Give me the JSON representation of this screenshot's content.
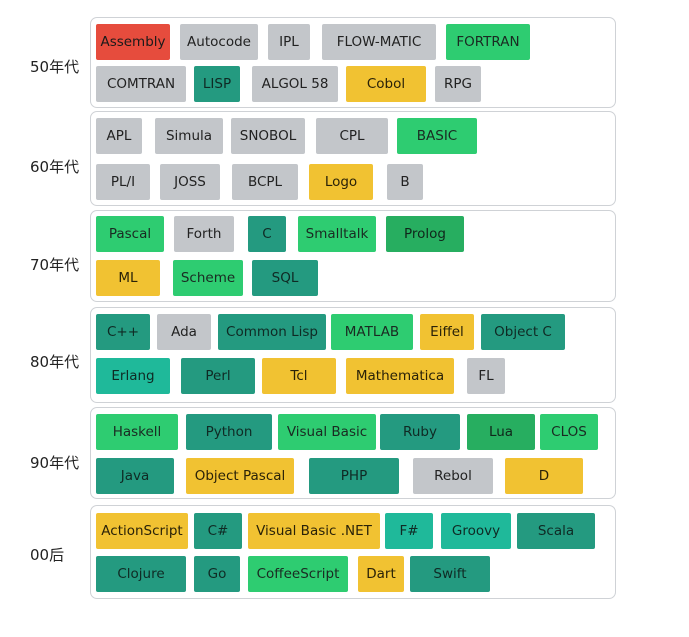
{
  "colors": {
    "red": "#e64c3d",
    "gray": "#c3c6ca",
    "green": "#2ecc71",
    "teal": "#249a80",
    "yellow": "#f1c232",
    "mint": "#1fb99a",
    "darkgreen": "#27ae60"
  },
  "eras": [
    {
      "label": "50年代",
      "rows": [
        [
          {
            "name": "Assembly",
            "color": "red"
          },
          {
            "name": "Autocode",
            "color": "gray"
          },
          {
            "name": "IPL",
            "color": "gray"
          },
          {
            "name": "FLOW-MATIC",
            "color": "gray"
          },
          {
            "name": "FORTRAN",
            "color": "green"
          }
        ],
        [
          {
            "name": "COMTRAN",
            "color": "gray"
          },
          {
            "name": "LISP",
            "color": "teal"
          },
          {
            "name": "ALGOL 58",
            "color": "gray"
          },
          {
            "name": "Cobol",
            "color": "yellow"
          },
          {
            "name": "RPG",
            "color": "gray"
          }
        ]
      ]
    },
    {
      "label": "60年代",
      "rows": [
        [
          {
            "name": "APL",
            "color": "gray"
          },
          {
            "name": "Simula",
            "color": "gray"
          },
          {
            "name": "SNOBOL",
            "color": "gray"
          },
          {
            "name": "CPL",
            "color": "gray"
          },
          {
            "name": "BASIC",
            "color": "green"
          }
        ],
        [
          {
            "name": "PL/I",
            "color": "gray"
          },
          {
            "name": "JOSS",
            "color": "gray"
          },
          {
            "name": "BCPL",
            "color": "gray"
          },
          {
            "name": "Logo",
            "color": "yellow"
          },
          {
            "name": "B",
            "color": "gray"
          }
        ]
      ]
    },
    {
      "label": "70年代",
      "rows": [
        [
          {
            "name": "Pascal",
            "color": "green"
          },
          {
            "name": "Forth",
            "color": "gray"
          },
          {
            "name": "C",
            "color": "teal"
          },
          {
            "name": "Smalltalk",
            "color": "green"
          },
          {
            "name": "Prolog",
            "color": "darkgreen"
          }
        ],
        [
          {
            "name": "ML",
            "color": "yellow"
          },
          {
            "name": "Scheme",
            "color": "green"
          },
          {
            "name": "SQL",
            "color": "teal"
          }
        ]
      ]
    },
    {
      "label": "80年代",
      "rows": [
        [
          {
            "name": "C++",
            "color": "teal"
          },
          {
            "name": "Ada",
            "color": "gray"
          },
          {
            "name": "Common Lisp",
            "color": "teal"
          },
          {
            "name": "MATLAB",
            "color": "green"
          },
          {
            "name": "Eiffel",
            "color": "yellow"
          },
          {
            "name": "Object C",
            "color": "teal"
          }
        ],
        [
          {
            "name": "Erlang",
            "color": "mint"
          },
          {
            "name": "Perl",
            "color": "teal"
          },
          {
            "name": "Tcl",
            "color": "yellow"
          },
          {
            "name": "Mathematica",
            "color": "yellow"
          },
          {
            "name": "FL",
            "color": "gray"
          }
        ]
      ]
    },
    {
      "label": "90年代",
      "rows": [
        [
          {
            "name": "Haskell",
            "color": "green"
          },
          {
            "name": "Python",
            "color": "teal"
          },
          {
            "name": "Visual Basic",
            "color": "green"
          },
          {
            "name": "Ruby",
            "color": "teal"
          },
          {
            "name": "Lua",
            "color": "darkgreen"
          },
          {
            "name": "CLOS",
            "color": "green"
          }
        ],
        [
          {
            "name": "Java",
            "color": "teal"
          },
          {
            "name": "Object Pascal",
            "color": "yellow"
          },
          {
            "name": "PHP",
            "color": "teal"
          },
          {
            "name": "Rebol",
            "color": "gray"
          },
          {
            "name": "D",
            "color": "yellow"
          }
        ]
      ]
    },
    {
      "label": "00后",
      "rows": [
        [
          {
            "name": "ActionScript",
            "color": "yellow"
          },
          {
            "name": "C#",
            "color": "teal"
          },
          {
            "name": "Visual Basic .NET",
            "color": "yellow"
          },
          {
            "name": "F#",
            "color": "mint"
          },
          {
            "name": "Groovy",
            "color": "mint"
          },
          {
            "name": "Scala",
            "color": "teal"
          }
        ],
        [
          {
            "name": "Clojure",
            "color": "teal"
          },
          {
            "name": "Go",
            "color": "teal"
          },
          {
            "name": "CoffeeScript",
            "color": "green"
          },
          {
            "name": "Dart",
            "color": "yellow"
          },
          {
            "name": "Swift",
            "color": "teal"
          }
        ]
      ]
    }
  ]
}
